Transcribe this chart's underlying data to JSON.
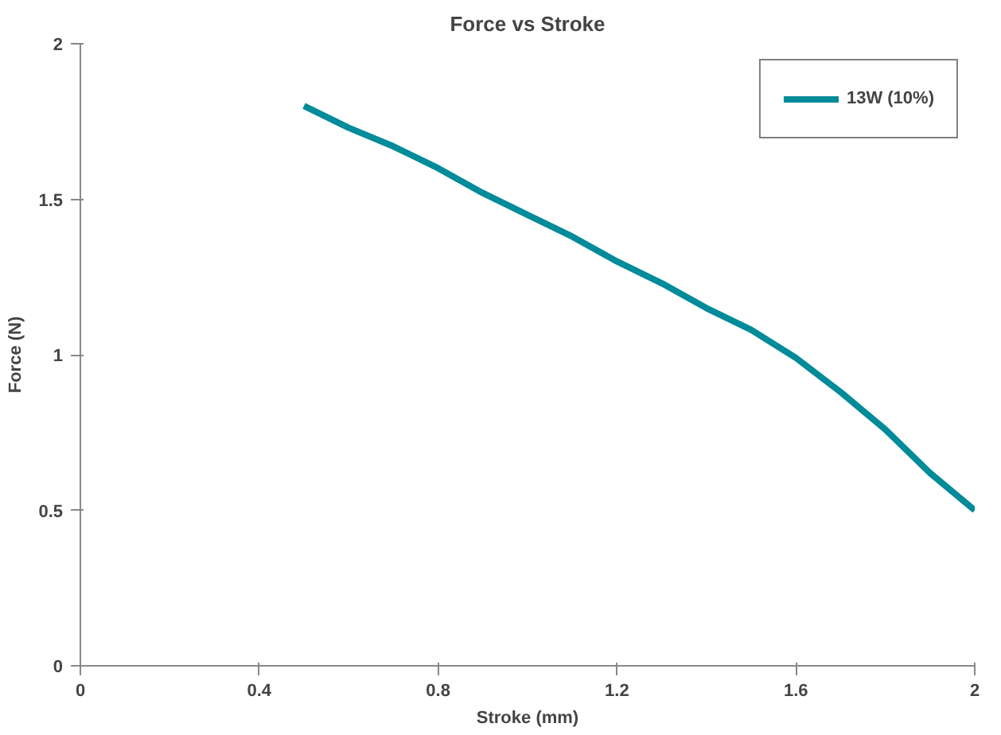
{
  "chart_data": {
    "type": "line",
    "title": "Force vs Stroke",
    "xlabel": "Stroke (mm)",
    "ylabel": "Force (N)",
    "x": [
      0.5,
      0.6,
      0.7,
      0.8,
      0.9,
      1.0,
      1.1,
      1.2,
      1.3,
      1.4,
      1.5,
      1.6,
      1.7,
      1.8,
      1.9,
      2.0
    ],
    "series": [
      {
        "name": "13W (10%)",
        "color": "#008b9a",
        "values": [
          1.8,
          1.73,
          1.67,
          1.6,
          1.52,
          1.45,
          1.38,
          1.3,
          1.23,
          1.15,
          1.08,
          0.99,
          0.88,
          0.76,
          0.62,
          0.5
        ]
      }
    ],
    "xlim": [
      0,
      2
    ],
    "ylim": [
      0,
      2
    ],
    "xticks": [
      0,
      0.4,
      0.8,
      1.2,
      1.6,
      2
    ],
    "yticks": [
      0,
      0.5,
      1,
      1.5,
      2
    ],
    "grid": false,
    "legend": "top right",
    "marker": "none",
    "line_style": "solid"
  }
}
